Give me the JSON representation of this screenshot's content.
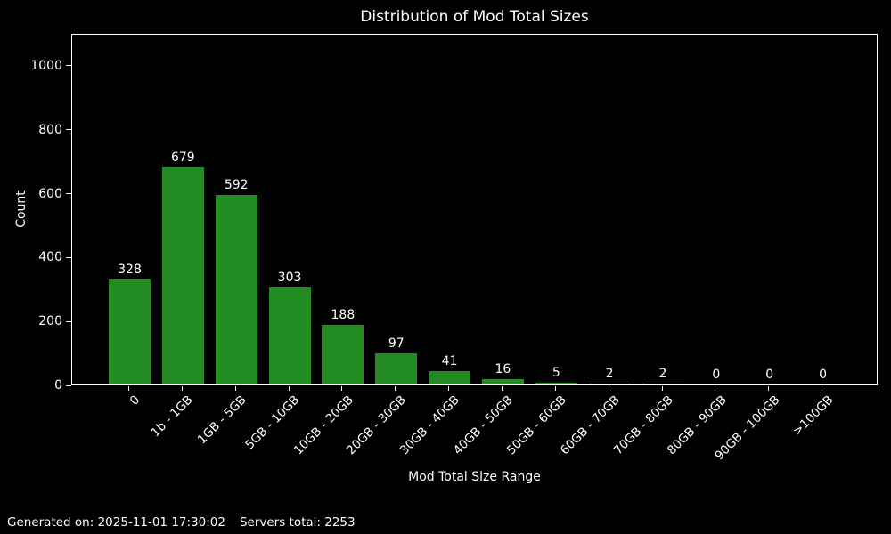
{
  "figure": {
    "background": "#000000",
    "text_color": "#ffffff"
  },
  "chart_data": {
    "type": "bar",
    "title": "Distribution of Mod Total Sizes",
    "xlabel": "Mod Total Size Range",
    "ylabel": "Count",
    "categories": [
      "0",
      "1b - 1GB",
      "1GB - 5GB",
      "5GB - 10GB",
      "10GB - 20GB",
      "20GB - 30GB",
      "30GB - 40GB",
      "40GB - 50GB",
      "50GB - 60GB",
      "60GB - 70GB",
      "70GB - 80GB",
      "80GB - 90GB",
      "90GB - 100GB",
      ">100GB"
    ],
    "values": [
      328,
      679,
      592,
      303,
      188,
      97,
      41,
      16,
      5,
      2,
      2,
      0,
      0,
      0
    ],
    "bar_color": "#228B22",
    "ylim": [
      0,
      1100
    ],
    "yticks": [
      0,
      200,
      400,
      600,
      800,
      1000
    ],
    "grid": false,
    "legend_position": "none",
    "value_labels": true,
    "x_tick_rotation": 45
  },
  "footer": {
    "generated": "Generated on: 2025-11-01 17:30:02",
    "servers_total": "Servers total: 2253"
  }
}
